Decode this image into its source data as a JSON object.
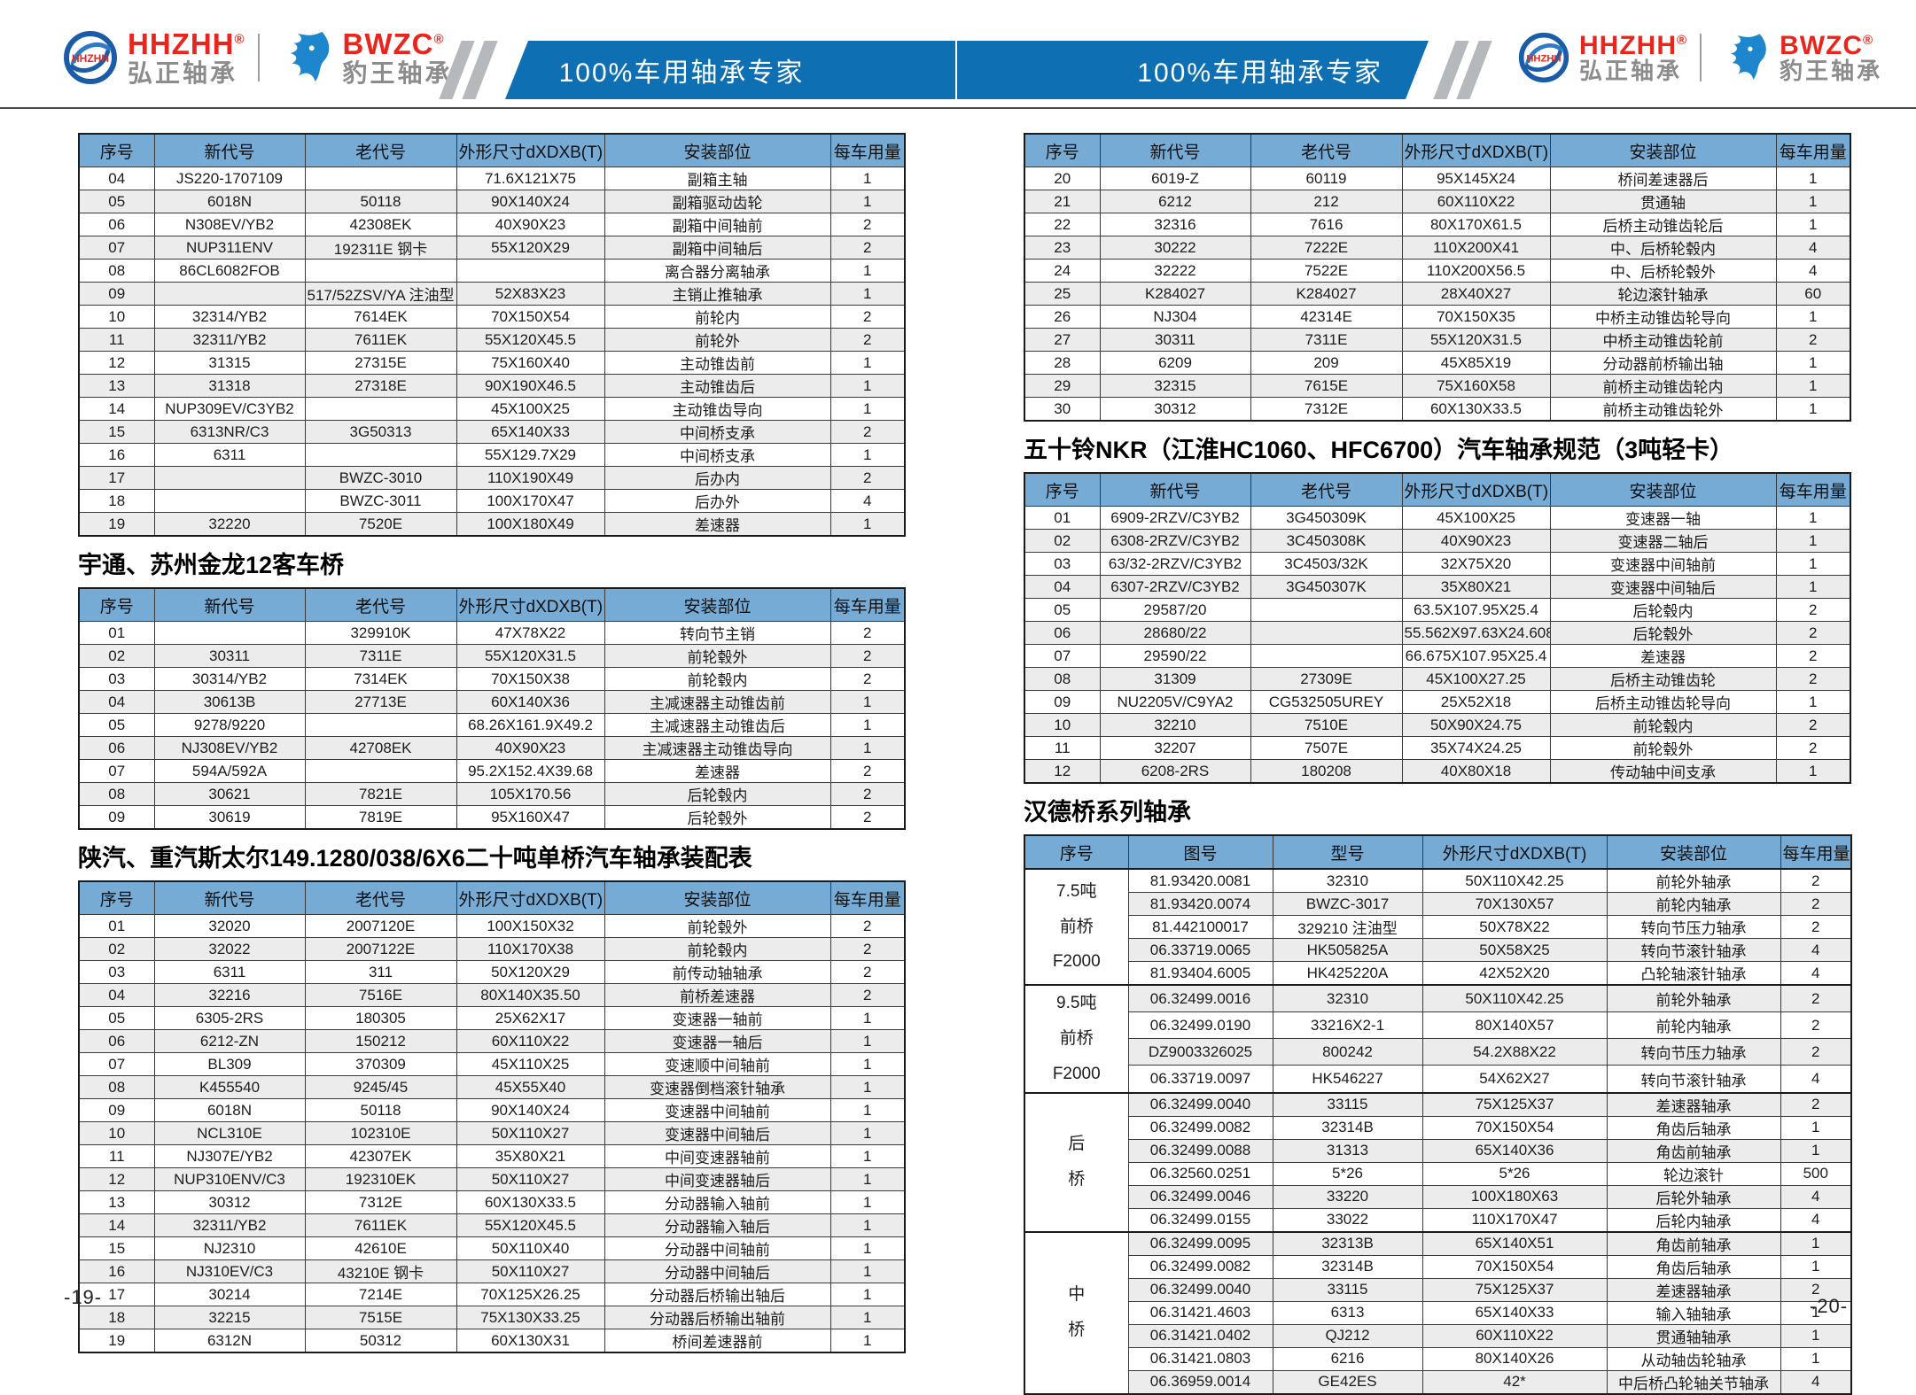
{
  "page": {
    "left_page_number": "-19-",
    "right_page_number": "-20-"
  },
  "header": {
    "banner_text": "100%车用轴承专家",
    "brand1": {
      "logo_text": "HHZHH",
      "name_en": "HHZHH",
      "reg": "®",
      "name_cn": "弘正轴承"
    },
    "brand2": {
      "name_en": "BWZC",
      "reg": "®",
      "name_cn": "豹王轴承"
    },
    "colors": {
      "banner_blue": "#0e6fb2",
      "brand_red": "#e8261d",
      "brand_gray": "#8c8c8c",
      "stripe_gray": "#b5b9bc",
      "table_header_blue": "#76abd5",
      "alt_row_gray": "#ececec"
    }
  },
  "tables": {
    "columns_standard": [
      "序号",
      "新代号",
      "老代号",
      "外形尺寸dXDXB(T)",
      "安装部位",
      "每车用量"
    ],
    "table1": {
      "title": "",
      "rows": [
        [
          "04",
          "JS220-1707109",
          "",
          "71.6X121X75",
          "副箱主轴",
          "1"
        ],
        [
          "05",
          "6018N",
          "50118",
          "90X140X24",
          "副箱驱动齿轮",
          "1"
        ],
        [
          "06",
          "N308EV/YB2",
          "42308EK",
          "40X90X23",
          "副箱中间轴前",
          "2"
        ],
        [
          "07",
          "NUP311ENV",
          "192311E 钢卡",
          "55X120X29",
          "副箱中间轴后",
          "2"
        ],
        [
          "08",
          "86CL6082FOB",
          "",
          "",
          "离合器分离轴承",
          "1"
        ],
        [
          "09",
          "",
          "517/52ZSV/YA 注油型",
          "52X83X23",
          "主销止推轴承",
          "1"
        ],
        [
          "10",
          "32314/YB2",
          "7614EK",
          "70X150X54",
          "前轮内",
          "2"
        ],
        [
          "11",
          "32311/YB2",
          "7611EK",
          "55X120X45.5",
          "前轮外",
          "2"
        ],
        [
          "12",
          "31315",
          "27315E",
          "75X160X40",
          "主动锥齿前",
          "1"
        ],
        [
          "13",
          "31318",
          "27318E",
          "90X190X46.5",
          "主动锥齿后",
          "1"
        ],
        [
          "14",
          "NUP309EV/C3YB2",
          "",
          "45X100X25",
          "主动锥齿导向",
          "1"
        ],
        [
          "15",
          "6313NR/C3",
          "3G50313",
          "65X140X33",
          "中间桥支承",
          "2"
        ],
        [
          "16",
          "6311",
          "",
          "55X129.7X29",
          "中间桥支承",
          "1"
        ],
        [
          "17",
          "",
          "BWZC-3010",
          "110X190X49",
          "后办内",
          "2"
        ],
        [
          "18",
          "",
          "BWZC-3011",
          "100X170X47",
          "后办外",
          "4"
        ],
        [
          "19",
          "32220",
          "7520E",
          "100X180X49",
          "差速器",
          "1"
        ]
      ]
    },
    "table2": {
      "title": "宇通、苏州金龙12客车桥",
      "rows": [
        [
          "01",
          "",
          "329910K",
          "47X78X22",
          "转向节主销",
          "2"
        ],
        [
          "02",
          "30311",
          "7311E",
          "55X120X31.5",
          "前轮毂外",
          "2"
        ],
        [
          "03",
          "30314/YB2",
          "7314EK",
          "70X150X38",
          "前轮毂内",
          "2"
        ],
        [
          "04",
          "30613B",
          "27713E",
          "60X140X36",
          "主减速器主动锥齿前",
          "1"
        ],
        [
          "05",
          "9278/9220",
          "",
          "68.26X161.9X49.2",
          "主减速器主动锥齿后",
          "1"
        ],
        [
          "06",
          "NJ308EV/YB2",
          "42708EK",
          "40X90X23",
          "主减速器主动锥齿导向",
          "1"
        ],
        [
          "07",
          "594A/592A",
          "",
          "95.2X152.4X39.68",
          "差速器",
          "2"
        ],
        [
          "08",
          "30621",
          "7821E",
          "105X170.56",
          "后轮毂内",
          "2"
        ],
        [
          "09",
          "30619",
          "7819E",
          "95X160X47",
          "后轮毂外",
          "2"
        ]
      ]
    },
    "table3": {
      "title": "陕汽、重汽斯太尔149.1280/038/6X6二十吨单桥汽车轴承装配表",
      "rows": [
        [
          "01",
          "32020",
          "2007120E",
          "100X150X32",
          "前轮毂外",
          "2"
        ],
        [
          "02",
          "32022",
          "2007122E",
          "110X170X38",
          "前轮毂内",
          "2"
        ],
        [
          "03",
          "6311",
          "311",
          "50X120X29",
          "前传动轴轴承",
          "2"
        ],
        [
          "04",
          "32216",
          "7516E",
          "80X140X35.50",
          "前桥差速器",
          "2"
        ],
        [
          "05",
          "6305-2RS",
          "180305",
          "25X62X17",
          "变速器一轴前",
          "1"
        ],
        [
          "06",
          "6212-ZN",
          "150212",
          "60X110X22",
          "变速器一轴后",
          "1"
        ],
        [
          "07",
          "BL309",
          "370309",
          "45X110X25",
          "变速顺中间轴前",
          "1"
        ],
        [
          "08",
          "K455540",
          "9245/45",
          "45X55X40",
          "变速器倒档滚针轴承",
          "1"
        ],
        [
          "09",
          "6018N",
          "50118",
          "90X140X24",
          "变速器中间轴前",
          "1"
        ],
        [
          "10",
          "NCL310E",
          "102310E",
          "50X110X27",
          "变速器中间轴后",
          "1"
        ],
        [
          "11",
          "NJ307E/YB2",
          "42307EK",
          "35X80X21",
          "中间变速器轴前",
          "1"
        ],
        [
          "12",
          "NUP310ENV/C3",
          "192310EK",
          "50X110X27",
          "中间变速器轴后",
          "1"
        ],
        [
          "13",
          "30312",
          "7312E",
          "60X130X33.5",
          "分动器输入轴前",
          "1"
        ],
        [
          "14",
          "32311/YB2",
          "7611EK",
          "55X120X45.5",
          "分动器输入轴后",
          "1"
        ],
        [
          "15",
          "NJ2310",
          "42610E",
          "50X110X40",
          "分动器中间轴前",
          "1"
        ],
        [
          "16",
          "NJ310EV/C3",
          "43210E 钢卡",
          "50X110X27",
          "分动器中间轴后",
          "1"
        ],
        [
          "17",
          "30214",
          "7214E",
          "70X125X26.25",
          "分动器后桥输出轴后",
          "1"
        ],
        [
          "18",
          "32215",
          "7515E",
          "75X130X33.25",
          "分动器后桥输出轴前",
          "1"
        ],
        [
          "19",
          "6312N",
          "50312",
          "60X130X31",
          "桥间差速器前",
          "1"
        ]
      ]
    },
    "table4": {
      "title": "",
      "rows": [
        [
          "20",
          "6019-Z",
          "60119",
          "95X145X24",
          "桥间差速器后",
          "1"
        ],
        [
          "21",
          "6212",
          "212",
          "60X110X22",
          "贯通轴",
          "1"
        ],
        [
          "22",
          "32316",
          "7616",
          "80X170X61.5",
          "后桥主动锥齿轮后",
          "1"
        ],
        [
          "23",
          "30222",
          "7222E",
          "110X200X41",
          "中、后桥轮毂内",
          "4"
        ],
        [
          "24",
          "32222",
          "7522E",
          "110X200X56.5",
          "中、后桥轮毂外",
          "4"
        ],
        [
          "25",
          "K284027",
          "K284027",
          "28X40X27",
          "轮边滚针轴承",
          "60"
        ],
        [
          "26",
          "NJ304",
          "42314E",
          "70X150X35",
          "中桥主动锥齿轮导向",
          "1"
        ],
        [
          "27",
          "30311",
          "7311E",
          "55X120X31.5",
          "中桥主动锥齿轮前",
          "2"
        ],
        [
          "28",
          "6209",
          "209",
          "45X85X19",
          "分动器前桥输出轴",
          "1"
        ],
        [
          "29",
          "32315",
          "7615E",
          "75X160X58",
          "前桥主动锥齿轮内",
          "1"
        ],
        [
          "30",
          "30312",
          "7312E",
          "60X130X33.5",
          "前桥主动锥齿轮外",
          "1"
        ]
      ]
    },
    "table5": {
      "title": "五十铃NKR（江淮HC1060、HFC6700）汽车轴承规范（3吨轻卡）",
      "rows": [
        [
          "01",
          "6909-2RZV/C3YB2",
          "3G450309K",
          "45X100X25",
          "变速器一轴",
          "1"
        ],
        [
          "02",
          "6308-2RZV/C3YB2",
          "3C450308K",
          "40X90X23",
          "变速器二轴后",
          "1"
        ],
        [
          "03",
          "63/32-2RZV/C3YB2",
          "3C4503/32K",
          "32X75X20",
          "变速器中间轴前",
          "1"
        ],
        [
          "04",
          "6307-2RZV/C3YB2",
          "3G450307K",
          "35X80X21",
          "变速器中间轴后",
          "1"
        ],
        [
          "05",
          "29587/20",
          "",
          "63.5X107.95X25.4",
          "后轮毂内",
          "2"
        ],
        [
          "06",
          "28680/22",
          "",
          "55.562X97.63X24.608",
          "后轮毂外",
          "2"
        ],
        [
          "07",
          "29590/22",
          "",
          "66.675X107.95X25.4",
          "差速器",
          "2"
        ],
        [
          "08",
          "31309",
          "27309E",
          "45X100X27.25",
          "后桥主动锥齿轮",
          "2"
        ],
        [
          "09",
          "NU2205V/C9YA2",
          "CG532505UREY",
          "25X52X18",
          "后桥主动锥齿轮导向",
          "1"
        ],
        [
          "10",
          "32210",
          "7510E",
          "50X90X24.75",
          "前轮毂内",
          "2"
        ],
        [
          "11",
          "32207",
          "7507E",
          "35X74X24.25",
          "前轮毂外",
          "2"
        ],
        [
          "12",
          "6208-2RS",
          "180208",
          "40X80X18",
          "传动轴中间支承",
          "1"
        ]
      ]
    },
    "table6": {
      "title": "汉德桥系列轴承",
      "columns": [
        "序号",
        "图号",
        "型号",
        "外形尺寸dXDXB(T)",
        "安装部位",
        "每车用量"
      ],
      "groups": [
        {
          "label": "7.5吨\n前桥\nF2000",
          "rows": [
            [
              "81.93420.0081",
              "32310",
              "50X110X42.25",
              "前轮外轴承",
              "2"
            ],
            [
              "81.93420.0074",
              "BWZC-3017",
              "70X130X57",
              "前轮内轴承",
              "2"
            ],
            [
              "81.442100017",
              "329210 注油型",
              "50X78X22",
              "转向节压力轴承",
              "2"
            ],
            [
              "06.33719.0065",
              "HK505825A",
              "50X58X25",
              "转向节滚针轴承",
              "4"
            ],
            [
              "81.93404.6005",
              "HK425220A",
              "42X52X20",
              "凸轮轴滚针轴承",
              "4"
            ]
          ]
        },
        {
          "label": "9.5吨\n前桥\nF2000",
          "rows": [
            [
              "06.32499.0016",
              "32310",
              "50X110X42.25",
              "前轮外轴承",
              "2"
            ],
            [
              "06.32499.0190",
              "33216X2-1",
              "80X140X57",
              "前轮内轴承",
              "2"
            ],
            [
              "DZ9003326025",
              "800242",
              "54.2X88X22",
              "转向节压力轴承",
              "2"
            ],
            [
              "06.33719.0097",
              "HK546227",
              "54X62X27",
              "转向节滚针轴承",
              "4"
            ]
          ]
        },
        {
          "label": "后\n桥",
          "rows": [
            [
              "06.32499.0040",
              "33115",
              "75X125X37",
              "差速器轴承",
              "2"
            ],
            [
              "06.32499.0082",
              "32314B",
              "70X150X54",
              "角齿后轴承",
              "1"
            ],
            [
              "06.32499.0088",
              "31313",
              "65X140X36",
              "角齿前轴承",
              "1"
            ],
            [
              "06.32560.0251",
              "5*26",
              "5*26",
              "轮边滚针",
              "500"
            ],
            [
              "06.32499.0046",
              "33220",
              "100X180X63",
              "后轮外轴承",
              "4"
            ],
            [
              "06.32499.0155",
              "33022",
              "110X170X47",
              "后轮内轴承",
              "4"
            ]
          ]
        },
        {
          "label": "中\n桥",
          "rows": [
            [
              "06.32499.0095",
              "32313B",
              "65X140X51",
              "角齿前轴承",
              "1"
            ],
            [
              "06.32499.0082",
              "32314B",
              "70X150X54",
              "角齿后轴承",
              "1"
            ],
            [
              "06.32499.0040",
              "33115",
              "75X125X37",
              "差速器轴承",
              "2"
            ],
            [
              "06.31421.4603",
              "6313",
              "65X140X33",
              "输入轴轴承",
              "1"
            ],
            [
              "06.31421.0402",
              "QJ212",
              "60X110X22",
              "贯通轴轴承",
              "1"
            ],
            [
              "06.31421.0803",
              "6216",
              "80X140X26",
              "从动轴齿轮轴承",
              "1"
            ],
            [
              "06.36959.0014",
              "GE42ES",
              "42*",
              "中后桥凸轮轴关节轴承",
              "4"
            ]
          ]
        }
      ]
    }
  }
}
